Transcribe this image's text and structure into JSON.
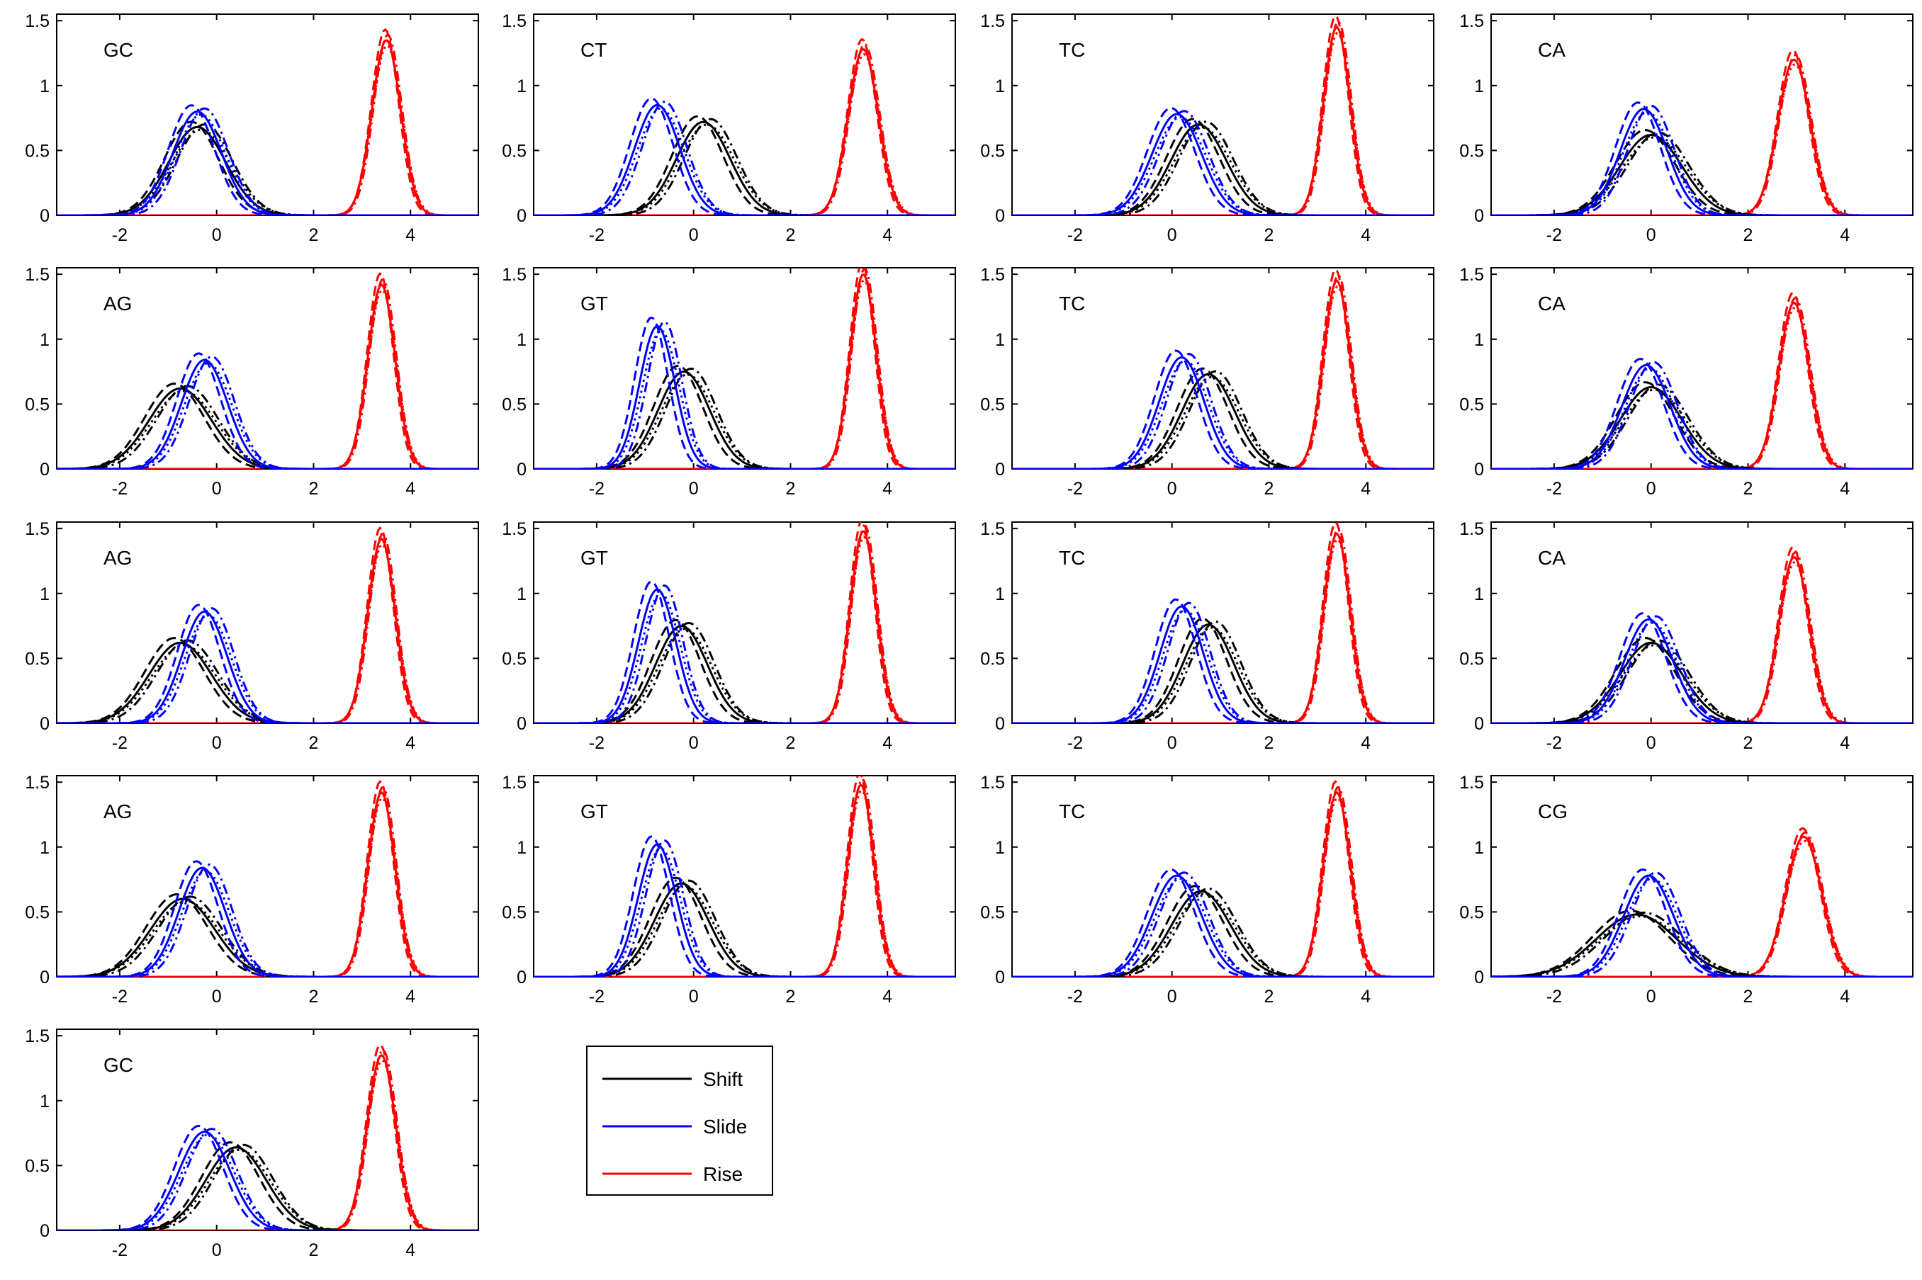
{
  "chart_data": {
    "type": "line",
    "description_note": "",
    "xlim": [
      -3.3,
      5.4
    ],
    "ylim": [
      0,
      1.55
    ],
    "xticks": [
      -2,
      0,
      2,
      4
    ],
    "yticks": [
      0,
      0.5,
      1,
      1.5
    ],
    "xtick_labels": [
      "-2",
      "0",
      "2",
      "4"
    ],
    "ytick_labels": [
      "0",
      "0.5",
      "1",
      "1.5"
    ],
    "grid": false,
    "legend": {
      "placement": "bottom-center",
      "entries": [
        {
          "name": "Shift",
          "color": "#000000"
        },
        {
          "name": "Slide",
          "color": "#0000ff"
        },
        {
          "name": "Rise",
          "color": "#ff0000"
        }
      ]
    },
    "line_styles": [
      "solid",
      "dashed",
      "dashdot",
      "dotted"
    ],
    "panels": [
      {
        "label": "GC",
        "shift": {
          "mu": -0.4,
          "peak": 0.68
        },
        "slide": {
          "mu": -0.4,
          "peak": 0.8
        },
        "rise": {
          "mu": 3.5,
          "peak": 1.35
        }
      },
      {
        "label": "CT",
        "shift": {
          "mu": 0.2,
          "peak": 0.72
        },
        "slide": {
          "mu": -0.75,
          "peak": 0.85
        },
        "rise": {
          "mu": 3.5,
          "peak": 1.28
        }
      },
      {
        "label": "TC",
        "shift": {
          "mu": 0.55,
          "peak": 0.7
        },
        "slide": {
          "mu": 0.1,
          "peak": 0.78
        },
        "rise": {
          "mu": 3.4,
          "peak": 1.45
        }
      },
      {
        "label": "CA",
        "shift": {
          "mu": 0.0,
          "peak": 0.62
        },
        "slide": {
          "mu": -0.15,
          "peak": 0.82
        },
        "rise": {
          "mu": 2.95,
          "peak": 1.2
        }
      },
      {
        "label": "AG",
        "shift": {
          "mu": -0.75,
          "peak": 0.62
        },
        "slide": {
          "mu": -0.25,
          "peak": 0.84
        },
        "rise": {
          "mu": 3.4,
          "peak": 1.42
        }
      },
      {
        "label": "GT",
        "shift": {
          "mu": -0.2,
          "peak": 0.75
        },
        "slide": {
          "mu": -0.75,
          "peak": 1.1
        },
        "rise": {
          "mu": 3.5,
          "peak": 1.5
        }
      },
      {
        "label": "TC",
        "shift": {
          "mu": 0.75,
          "peak": 0.73
        },
        "slide": {
          "mu": 0.2,
          "peak": 0.86
        },
        "rise": {
          "mu": 3.4,
          "peak": 1.45
        }
      },
      {
        "label": "CA",
        "shift": {
          "mu": 0.0,
          "peak": 0.63
        },
        "slide": {
          "mu": -0.1,
          "peak": 0.8
        },
        "rise": {
          "mu": 2.95,
          "peak": 1.28
        }
      },
      {
        "label": "AG",
        "shift": {
          "mu": -0.75,
          "peak": 0.62
        },
        "slide": {
          "mu": -0.25,
          "peak": 0.86
        },
        "rise": {
          "mu": 3.4,
          "peak": 1.42
        }
      },
      {
        "label": "GT",
        "shift": {
          "mu": -0.25,
          "peak": 0.75
        },
        "slide": {
          "mu": -0.75,
          "peak": 1.03
        },
        "rise": {
          "mu": 3.5,
          "peak": 1.48
        }
      },
      {
        "label": "TC",
        "shift": {
          "mu": 0.75,
          "peak": 0.76
        },
        "slide": {
          "mu": 0.2,
          "peak": 0.9
        },
        "rise": {
          "mu": 3.4,
          "peak": 1.46
        }
      },
      {
        "label": "CA",
        "shift": {
          "mu": 0.0,
          "peak": 0.62
        },
        "slide": {
          "mu": -0.05,
          "peak": 0.8
        },
        "rise": {
          "mu": 2.95,
          "peak": 1.28
        }
      },
      {
        "label": "AG",
        "shift": {
          "mu": -0.7,
          "peak": 0.6
        },
        "slide": {
          "mu": -0.3,
          "peak": 0.84
        },
        "rise": {
          "mu": 3.4,
          "peak": 1.42
        }
      },
      {
        "label": "GT",
        "shift": {
          "mu": -0.25,
          "peak": 0.72
        },
        "slide": {
          "mu": -0.75,
          "peak": 1.02
        },
        "rise": {
          "mu": 3.45,
          "peak": 1.48
        }
      },
      {
        "label": "TC",
        "shift": {
          "mu": 0.6,
          "peak": 0.66
        },
        "slide": {
          "mu": 0.1,
          "peak": 0.78
        },
        "rise": {
          "mu": 3.4,
          "peak": 1.42
        }
      },
      {
        "label": "CG",
        "shift": {
          "mu": -0.3,
          "peak": 0.48
        },
        "slide": {
          "mu": -0.05,
          "peak": 0.78
        },
        "rise": {
          "mu": 3.15,
          "peak": 1.08
        }
      },
      {
        "label": "GC",
        "shift": {
          "mu": 0.4,
          "peak": 0.64
        },
        "slide": {
          "mu": -0.25,
          "peak": 0.76
        },
        "rise": {
          "mu": 3.4,
          "peak": 1.35
        }
      }
    ]
  }
}
